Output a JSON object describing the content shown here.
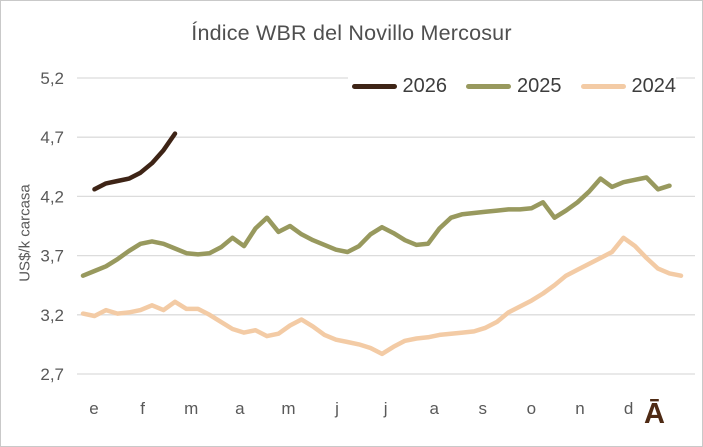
{
  "chart_data": {
    "type": "line",
    "title": "Índice WBR del Novillo Mercosur",
    "ylabel": "US$/k carcasa",
    "x_unit": "week-of-year",
    "x_axis": {
      "tick_labels": [
        "e",
        "f",
        "m",
        "a",
        "m",
        "j",
        "j",
        "a",
        "s",
        "o",
        "n",
        "d"
      ]
    },
    "y_axis": {
      "range": [
        2.7,
        5.2
      ],
      "ticks": [
        {
          "label": "5,2",
          "value": 5.2
        },
        {
          "label": "4,7",
          "value": 4.7
        },
        {
          "label": "4,2",
          "value": 4.2
        },
        {
          "label": "3,7",
          "value": 3.7
        },
        {
          "label": "3,2",
          "value": 3.2
        },
        {
          "label": "2,7",
          "value": 2.7
        }
      ]
    },
    "grid": "horizontal",
    "gridline_color": "#dcdcdc",
    "text_color": "#595959",
    "legend": {
      "position": "top-right",
      "entries": [
        "2026",
        "2025",
        "2024"
      ]
    },
    "series": [
      {
        "name": "2026",
        "color": "#3e2416",
        "start_week": 2,
        "values": [
          4.26,
          4.31,
          4.33,
          4.35,
          4.4,
          4.48,
          4.59,
          4.73
        ]
      },
      {
        "name": "2025",
        "color": "#98995e",
        "start_week": 1,
        "values": [
          3.53,
          3.57,
          3.61,
          3.67,
          3.74,
          3.8,
          3.82,
          3.8,
          3.76,
          3.72,
          3.71,
          3.72,
          3.77,
          3.85,
          3.78,
          3.93,
          4.02,
          3.9,
          3.95,
          3.88,
          3.83,
          3.79,
          3.75,
          3.73,
          3.78,
          3.88,
          3.94,
          3.89,
          3.83,
          3.79,
          3.8,
          3.93,
          4.02,
          4.05,
          4.06,
          4.07,
          4.08,
          4.09,
          4.09,
          4.1,
          4.15,
          4.02,
          4.08,
          4.15,
          4.24,
          4.35,
          4.28,
          4.32,
          4.34,
          4.36,
          4.26,
          4.29
        ]
      },
      {
        "name": "2024",
        "color": "#f3cba5",
        "start_week": 1,
        "values": [
          3.21,
          3.19,
          3.24,
          3.21,
          3.22,
          3.24,
          3.28,
          3.24,
          3.31,
          3.25,
          3.25,
          3.2,
          3.14,
          3.08,
          3.05,
          3.07,
          3.02,
          3.04,
          3.11,
          3.16,
          3.1,
          3.03,
          2.99,
          2.97,
          2.95,
          2.92,
          2.87,
          2.93,
          2.98,
          3.0,
          3.01,
          3.03,
          3.04,
          3.05,
          3.06,
          3.09,
          3.14,
          3.22,
          3.27,
          3.32,
          3.38,
          3.45,
          3.53,
          3.58,
          3.63,
          3.68,
          3.73,
          3.85,
          3.78,
          3.68,
          3.59,
          3.55,
          3.53
        ]
      }
    ],
    "watermark": {
      "text": "Ā",
      "color": "#4e2a14"
    }
  }
}
